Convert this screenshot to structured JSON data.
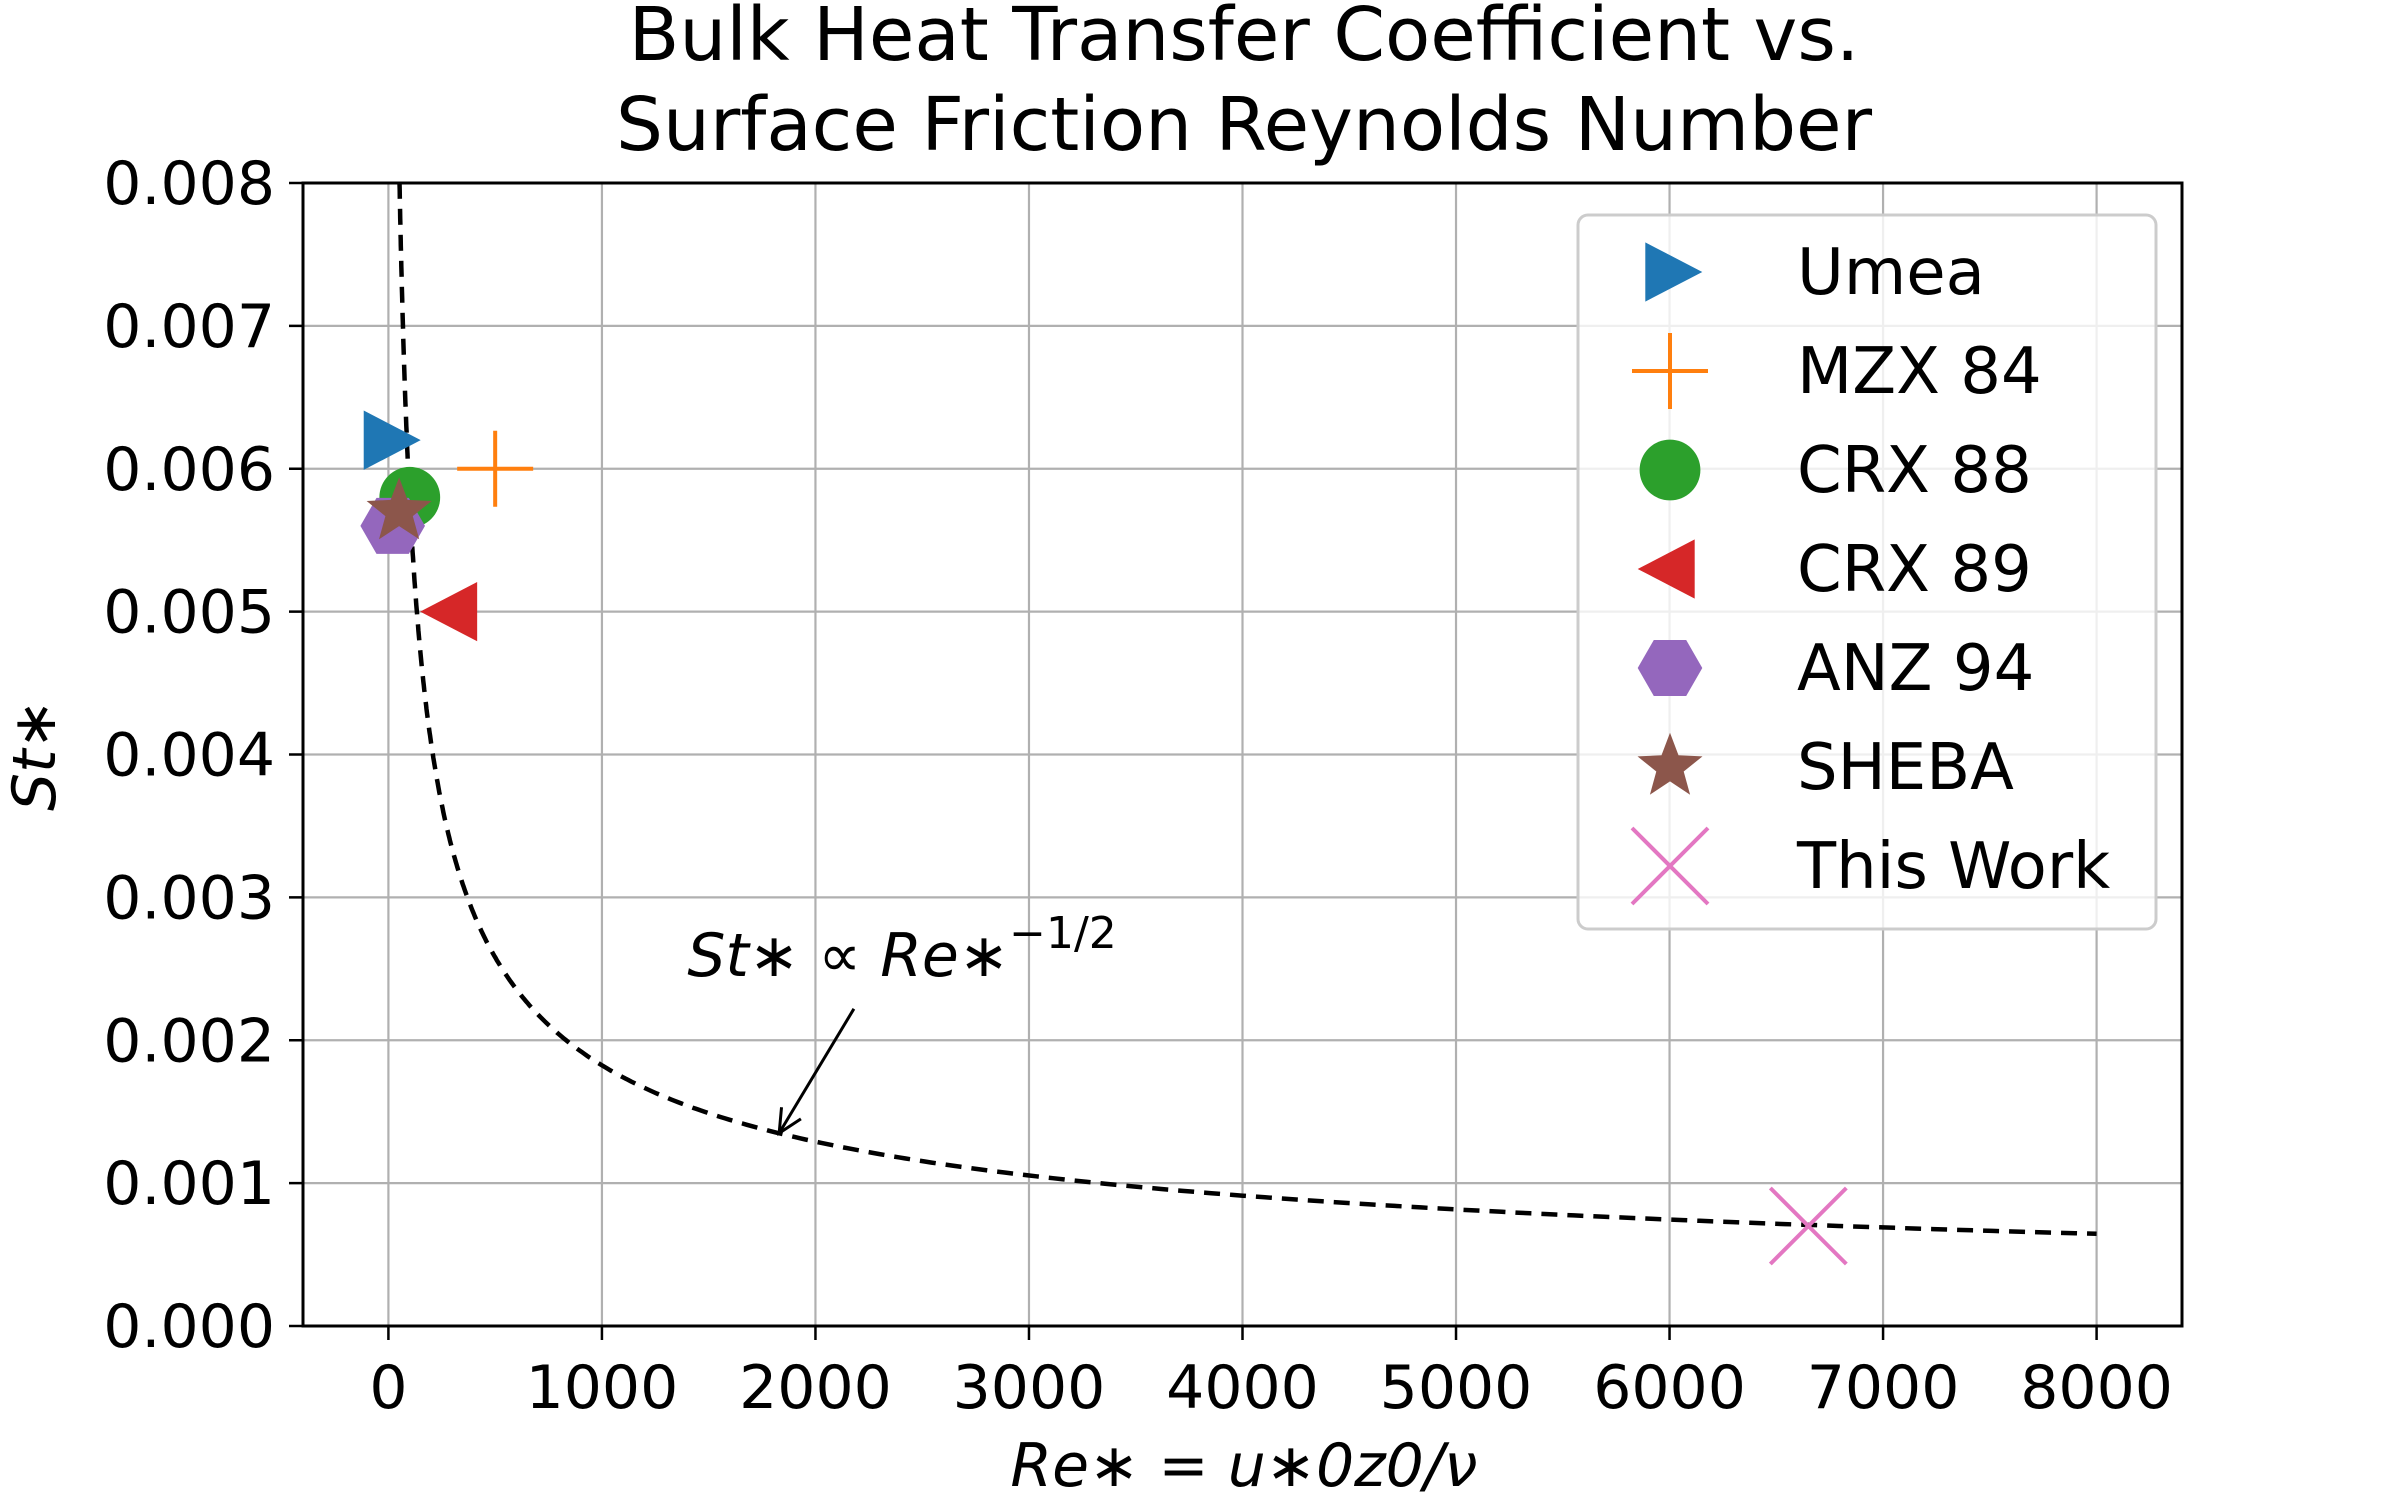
{
  "chart_data": {
    "type": "scatter",
    "title_lines": [
      "Bulk Heat Transfer Coefficient vs.",
      "Surface Friction Reynolds Number"
    ],
    "xlabel": "Re∗ = u∗0z0/ν",
    "ylabel": "St∗",
    "xlim": [
      -400,
      8400
    ],
    "ylim": [
      0,
      0.008
    ],
    "xticks": [
      0,
      1000,
      2000,
      3000,
      4000,
      5000,
      6000,
      7000,
      8000
    ],
    "xtick_labels": [
      "0",
      "1000",
      "2000",
      "3000",
      "4000",
      "5000",
      "6000",
      "7000",
      "8000"
    ],
    "yticks": [
      0,
      0.001,
      0.002,
      0.003,
      0.004,
      0.005,
      0.006,
      0.007,
      0.008
    ],
    "ytick_labels": [
      "0.000",
      "0.001",
      "0.002",
      "0.003",
      "0.004",
      "0.005",
      "0.006",
      "0.007",
      "0.008"
    ],
    "grid": true,
    "legend_position": "top-right",
    "series": [
      {
        "name": "Umea",
        "marker": "triangle-right",
        "color": "#1f77b4",
        "points": [
          [
            0,
            0.0062
          ]
        ]
      },
      {
        "name": "MZX 84",
        "marker": "plus",
        "color": "#ff7f0e",
        "points": [
          [
            500,
            0.006
          ]
        ]
      },
      {
        "name": "CRX 88",
        "marker": "circle",
        "color": "#2ca02c",
        "points": [
          [
            100,
            0.0058
          ]
        ]
      },
      {
        "name": "CRX 89",
        "marker": "triangle-left",
        "color": "#d62728",
        "points": [
          [
            300,
            0.005
          ]
        ]
      },
      {
        "name": "ANZ 94",
        "marker": "hexagon",
        "color": "#9467bd",
        "points": [
          [
            20,
            0.0056
          ]
        ]
      },
      {
        "name": "SHEBA",
        "marker": "star",
        "color": "#8c564b",
        "points": [
          [
            50,
            0.0057
          ]
        ]
      },
      {
        "name": "This Work",
        "marker": "x",
        "color": "#e377c2",
        "points": [
          [
            6650,
            0.0007
          ]
        ]
      }
    ],
    "reference_curve": {
      "style": "dashed",
      "color": "#000000",
      "formula": "St = 0.0577 * Re^(-1/2)",
      "coefficient": 0.0577,
      "x_range": [
        52,
        8000
      ]
    },
    "annotation": {
      "text_main": "St∗ ∝ Re∗",
      "text_sup": "−1/2",
      "text_xy": [
        1400,
        0.00245
      ],
      "arrow_from": [
        2180,
        0.00222
      ],
      "arrow_to": [
        1830,
        0.00135
      ]
    }
  }
}
